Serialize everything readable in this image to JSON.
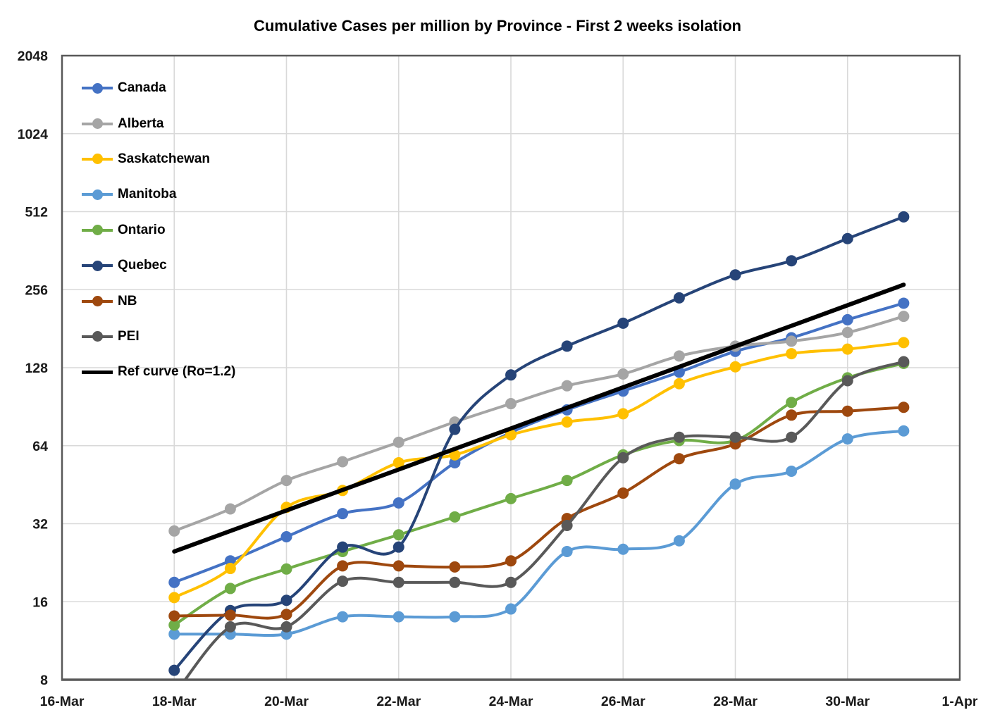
{
  "title": "Cumulative Cases per million by Province - First 2 weeks isolation",
  "chart_data": {
    "type": "line",
    "title": "Cumulative Cases per million by Province - First 2 weeks isolation",
    "y_scale": "log2",
    "ylim": [
      8,
      2048
    ],
    "y_tick_labels": [
      "8",
      "16",
      "32",
      "64",
      "128",
      "256",
      "512",
      "1024",
      "2048"
    ],
    "x_tick_labels": [
      "16-Mar",
      "18-Mar",
      "20-Mar",
      "22-Mar",
      "24-Mar",
      "26-Mar",
      "28-Mar",
      "30-Mar",
      "1-Apr"
    ],
    "x_axis_span_days": 16,
    "x_tick_step_days": 2,
    "data_start_day_offset": 2,
    "data_dates": [
      "18-Mar",
      "19-Mar",
      "20-Mar",
      "21-Mar",
      "22-Mar",
      "23-Mar",
      "24-Mar",
      "25-Mar",
      "26-Mar",
      "27-Mar",
      "28-Mar",
      "29-Mar",
      "30-Mar",
      "31-Mar"
    ],
    "grid": true,
    "legend_position": "upper-left-inside",
    "colors": {
      "gridline": "#d9d9d9",
      "border": "#595959",
      "label": "#1a1a1a"
    },
    "series": [
      {
        "name": "Canada",
        "color": "#4472C4",
        "marker": true,
        "smooth": true,
        "values": [
          19,
          23,
          28.5,
          35,
          38.5,
          55,
          72,
          88,
          104,
          123,
          148,
          167,
          196,
          227
        ]
      },
      {
        "name": "Alberta",
        "color": "#A5A5A5",
        "marker": true,
        "smooth": true,
        "values": [
          30,
          36.5,
          47,
          55.5,
          66,
          79,
          93,
          109,
          121,
          142,
          155,
          162,
          175,
          202
        ]
      },
      {
        "name": "Saskatchewan",
        "color": "#FFC000",
        "marker": true,
        "smooth": true,
        "values": [
          16.6,
          21.5,
          37,
          43,
          55,
          59,
          70.5,
          79,
          85,
          111,
          129,
          145,
          151,
          160
        ]
      },
      {
        "name": "Manitoba",
        "color": "#5B9BD5",
        "marker": true,
        "smooth": true,
        "values": [
          12,
          12,
          12,
          14,
          14,
          14,
          15,
          25,
          25.5,
          27.5,
          45.5,
          51,
          68,
          73
        ]
      },
      {
        "name": "Ontario",
        "color": "#70AD47",
        "marker": true,
        "smooth": true,
        "values": [
          13,
          18,
          21.4,
          25,
          29,
          34,
          40,
          47,
          59,
          67,
          67,
          94,
          117,
          133
        ]
      },
      {
        "name": "Quebec",
        "color": "#264478",
        "marker": true,
        "smooth": true,
        "values": [
          8.7,
          14.8,
          16.2,
          26,
          26,
          74,
          120,
          155,
          190,
          238,
          292,
          331,
          403,
          489
        ]
      },
      {
        "name": "NB",
        "color": "#9E480E",
        "marker": true,
        "smooth": true,
        "values": [
          14.1,
          14.2,
          14.3,
          22,
          22,
          21.8,
          23,
          33.5,
          42,
          57,
          65,
          84,
          87,
          90
        ]
      },
      {
        "name": "PEI",
        "color": "#595959",
        "marker": true,
        "smooth": true,
        "values": [
          7,
          12.8,
          12.8,
          19.2,
          19,
          19,
          19,
          31.5,
          57.5,
          69,
          69,
          69,
          114,
          135
        ]
      },
      {
        "name": "Ref curve (Ro=1.2)",
        "color": "#000000",
        "marker": false,
        "smooth": false,
        "is_reference": true,
        "values": [
          25,
          30,
          36,
          43.2,
          51.8,
          62.2,
          74.6,
          89.6,
          107.5,
          129,
          154.8,
          185.7,
          222.9,
          267.5
        ]
      }
    ]
  }
}
